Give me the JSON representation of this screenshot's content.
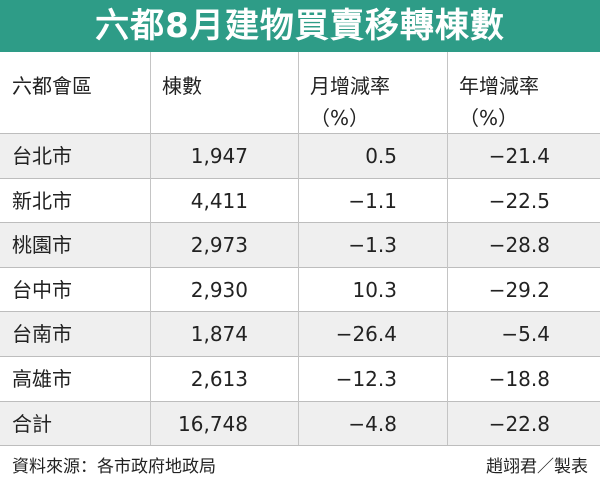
{
  "title": "六都8月建物買賣移轉棟數",
  "table": {
    "header": [
      [
        "六都會區"
      ],
      [
        "棟數"
      ],
      [
        "月增減率",
        "（%）"
      ],
      [
        "年增減率",
        "（%）"
      ]
    ],
    "rows": [
      [
        "台北市",
        "1,947",
        "0.5",
        "−21.4"
      ],
      [
        "新北市",
        "4,411",
        "−1.1",
        "−22.5"
      ],
      [
        "桃園市",
        "2,973",
        "−1.3",
        "−28.8"
      ],
      [
        "台中市",
        "2,930",
        "10.3",
        "−29.2"
      ],
      [
        "台南市",
        "1,874",
        "−26.4",
        "−5.4"
      ],
      [
        "高雄市",
        "2,613",
        "−12.3",
        "−18.8"
      ],
      [
        "合計",
        "16,748",
        "−4.8",
        "−22.8"
      ]
    ]
  },
  "footer": {
    "source": "資料來源：各市政府地政局",
    "credit": "趙翊君／製表"
  }
}
